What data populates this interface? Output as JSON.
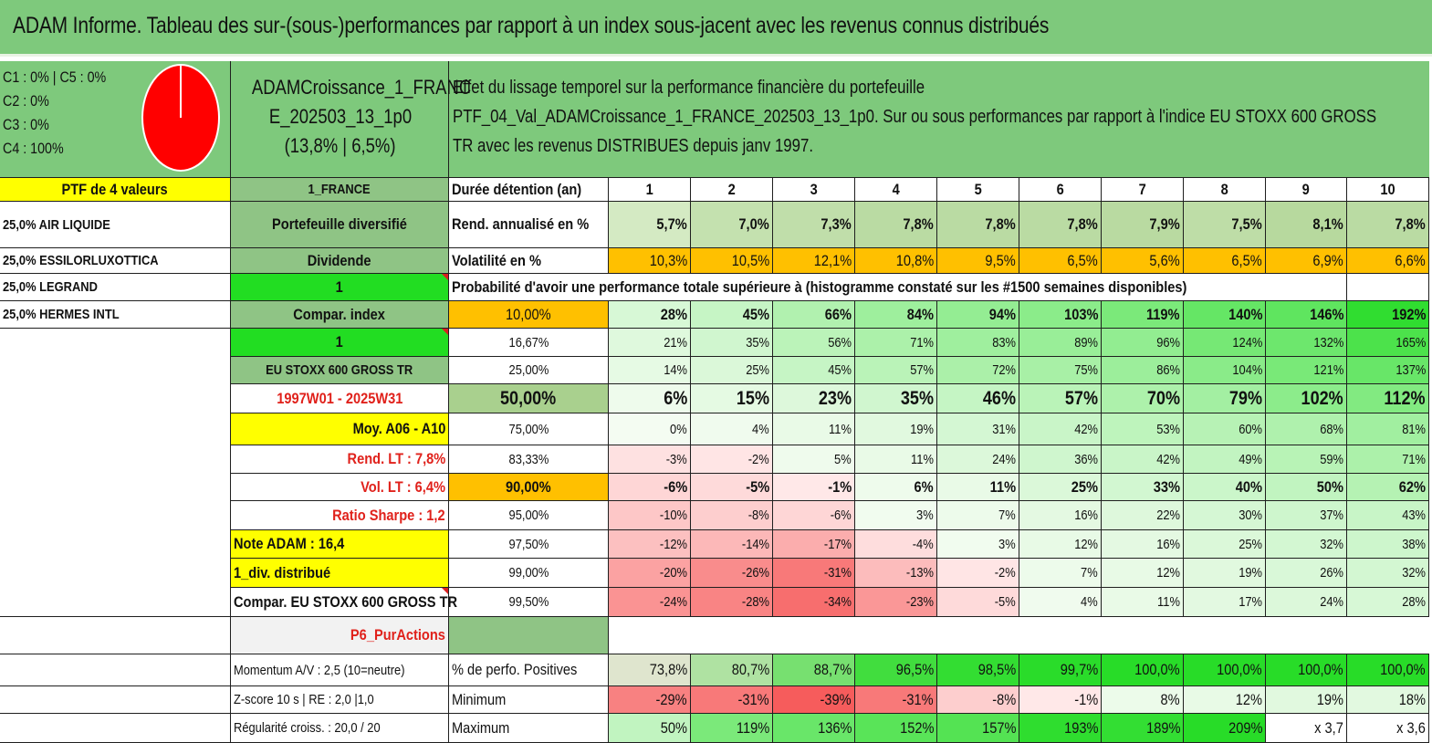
{
  "title": "ADAM Informe. Tableau des sur-(sous-)performances par rapport à un index sous-jacent avec les revenus connus distribués",
  "colors": {
    "header_green": "#7ec97c",
    "dark_green": "#8fc485",
    "mid_green": "#a9d08e",
    "bright_green": "#22dd22",
    "yellow": "#ffff00",
    "orange": "#ffc000",
    "red_text": "#e0211b",
    "pie_red": "#ff0000"
  },
  "allocation": {
    "lines": [
      "C1 : 0% | C5 : 0%",
      "C2 : 0%",
      "C3 : 0%",
      "C4 : 100%"
    ],
    "pie_values": [
      0,
      0,
      0,
      100,
      0
    ]
  },
  "fund": {
    "name_line1": "ADAMCroissance_1_FRANC",
    "name_line2": "E_202503_13_1p0",
    "stats": "(13,8% | 6,5%)"
  },
  "description": {
    "line1": "Effet du lissage temporel sur la performance financière du portefeuille",
    "line2": "PTF_04_Val_ADAMCroissance_1_FRANCE_202503_13_1p0. Sur ou sous performances par rapport à l'indice EU STOXX 600 GROSS",
    "line3": "TR avec les revenus DISTRIBUES depuis janv 1997."
  },
  "holdings_header": "PTF de 4 valeurs",
  "holdings": [
    "25,0% AIR LIQUIDE",
    "25,0% ESSILORLUXOTTICA",
    "25,0% LEGRAND",
    "25,0% HERMES INTL"
  ],
  "side": [
    "1_FRANCE",
    "Portefeuille diversifié",
    "Dividende",
    "1",
    "Compar. index",
    "1",
    "EU STOXX 600 GROSS TR",
    "1997W01 - 2025W31",
    "Moy. A06 - A10",
    "Rend. LT : 7,8%",
    "Vol. LT : 6,4%",
    "Ratio Sharpe : 1,2",
    "Note ADAM : 16,4",
    "1_div. distribué",
    "Compar. EU STOXX 600 GROSS TR",
    "P6_PurActions",
    "Momentum A/V : 2,5 (10=neutre)",
    "Z-score 10 s | RE : 2,0 |1,0",
    "Régularité croiss. : 20,0 / 20"
  ],
  "table": {
    "duration_label": "Durée détention (an)",
    "years": [
      "1",
      "2",
      "3",
      "4",
      "5",
      "6",
      "7",
      "8",
      "9",
      "10"
    ],
    "return_label": "Rend. annualisé en %",
    "returns": [
      "5,7%",
      "7,0%",
      "7,3%",
      "7,8%",
      "7,8%",
      "7,8%",
      "7,9%",
      "7,5%",
      "8,1%",
      "7,8%"
    ],
    "volatility_label": "Volatilité en %",
    "volatility": [
      "10,3%",
      "10,5%",
      "12,1%",
      "10,8%",
      "9,5%",
      "6,5%",
      "5,6%",
      "6,5%",
      "6,9%",
      "6,6%"
    ],
    "prob_title": "Probabilité d'avoir une performance totale supérieure à (histogramme constaté sur les #1500 semaines disponibles)",
    "prob_rows": [
      {
        "label": "10,00%",
        "values": [
          "28%",
          "45%",
          "66%",
          "84%",
          "94%",
          "103%",
          "119%",
          "140%",
          "146%",
          "192%"
        ]
      },
      {
        "label": "16,67%",
        "values": [
          "21%",
          "35%",
          "56%",
          "71%",
          "83%",
          "89%",
          "96%",
          "124%",
          "132%",
          "165%"
        ]
      },
      {
        "label": "25,00%",
        "values": [
          "14%",
          "25%",
          "45%",
          "57%",
          "72%",
          "75%",
          "86%",
          "104%",
          "121%",
          "137%"
        ]
      },
      {
        "label": "50,00%",
        "values": [
          "6%",
          "15%",
          "23%",
          "35%",
          "46%",
          "57%",
          "70%",
          "79%",
          "102%",
          "112%"
        ]
      },
      {
        "label": "75,00%",
        "values": [
          "0%",
          "4%",
          "11%",
          "19%",
          "31%",
          "42%",
          "53%",
          "60%",
          "68%",
          "81%"
        ]
      },
      {
        "label": "83,33%",
        "values": [
          "-3%",
          "-2%",
          "5%",
          "11%",
          "24%",
          "36%",
          "42%",
          "49%",
          "59%",
          "71%"
        ]
      },
      {
        "label": "90,00%",
        "values": [
          "-6%",
          "-5%",
          "-1%",
          "6%",
          "11%",
          "25%",
          "33%",
          "40%",
          "50%",
          "62%"
        ]
      },
      {
        "label": "95,00%",
        "values": [
          "-10%",
          "-8%",
          "-6%",
          "3%",
          "7%",
          "16%",
          "22%",
          "30%",
          "37%",
          "43%"
        ]
      },
      {
        "label": "97,50%",
        "values": [
          "-12%",
          "-14%",
          "-17%",
          "-4%",
          "3%",
          "12%",
          "16%",
          "25%",
          "32%",
          "38%"
        ]
      },
      {
        "label": "99,00%",
        "values": [
          "-20%",
          "-26%",
          "-31%",
          "-13%",
          "-2%",
          "7%",
          "12%",
          "19%",
          "26%",
          "32%"
        ]
      },
      {
        "label": "99,50%",
        "values": [
          "-24%",
          "-28%",
          "-34%",
          "-23%",
          "-5%",
          "4%",
          "11%",
          "17%",
          "24%",
          "28%"
        ]
      }
    ],
    "positive_label": "% de perfo. Positives",
    "positive": [
      "73,8%",
      "80,7%",
      "88,7%",
      "96,5%",
      "98,5%",
      "99,7%",
      "100,0%",
      "100,0%",
      "100,0%",
      "100,0%"
    ],
    "min_label": "Minimum",
    "minimum": [
      "-29%",
      "-31%",
      "-39%",
      "-31%",
      "-8%",
      "-1%",
      "8%",
      "12%",
      "19%",
      "18%"
    ],
    "max_label": "Maximum",
    "maximum": [
      "50%",
      "119%",
      "136%",
      "152%",
      "157%",
      "193%",
      "189%",
      "209%",
      "x 3,7",
      "x 3,6"
    ]
  }
}
